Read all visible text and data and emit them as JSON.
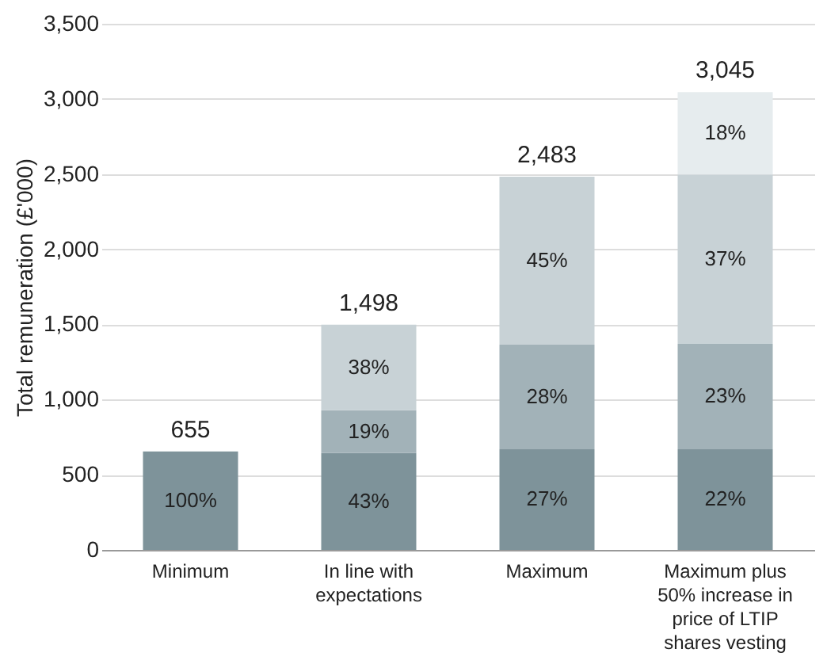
{
  "chart_data": {
    "type": "bar",
    "stacked": true,
    "ylabel": "Total remuneration (£'000)",
    "categories": [
      "Minimum",
      "In line with expectations",
      "Maximum",
      "Maximum plus 50% increase in price of LTIP shares vesting"
    ],
    "series": [
      {
        "color": "#7e939a",
        "values": [
          655,
          644,
          670,
          670
        ]
      },
      {
        "color": "#a2b2b8",
        "values": [
          0,
          285,
          695,
          700
        ]
      },
      {
        "color": "#c8d2d6",
        "values": [
          0,
          569,
          1118,
          1127
        ]
      },
      {
        "color": "#e6ecee",
        "values": [
          0,
          0,
          0,
          548
        ]
      }
    ],
    "annotations": [
      "100%",
      "43%",
      "19%",
      "38%",
      "27%",
      "28%",
      "45%",
      "22%",
      "23%",
      "37%",
      "18%"
    ],
    "totals": [
      "655",
      "1,498",
      "2,483",
      "3,045"
    ],
    "ylim": [
      0,
      3500
    ],
    "yticks": [
      {
        "value": 0,
        "label": "0"
      },
      {
        "value": 500,
        "label": "500"
      },
      {
        "value": 1000,
        "label": "1,000"
      },
      {
        "value": 1500,
        "label": "1,500"
      },
      {
        "value": 2000,
        "label": "2,000"
      },
      {
        "value": 2500,
        "label": "2,500"
      },
      {
        "value": 3000,
        "label": "3,000"
      },
      {
        "value": 3500,
        "label": "3,500"
      }
    ],
    "grid": "y",
    "legend": false
  }
}
